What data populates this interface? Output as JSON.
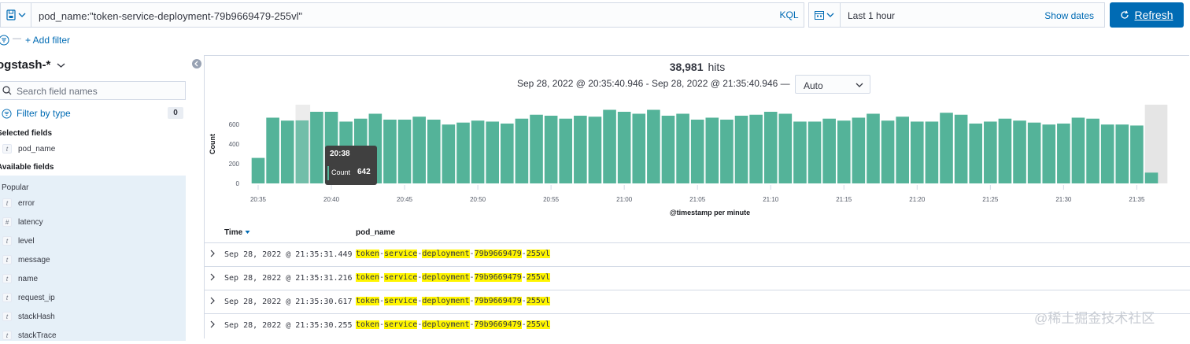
{
  "query": {
    "text": "pod_name:\"token-service-deployment-79b9669479-255vl\"",
    "language": "KQL"
  },
  "time": {
    "label": "Last 1 hour",
    "show_dates": "Show dates",
    "refresh": "Refresh"
  },
  "filters": {
    "add": "+ Add filter"
  },
  "sidebar": {
    "index_pattern": "ogstash-*",
    "search_placeholder": "Search field names",
    "filter_by_type": "Filter by type",
    "filter_count": "0",
    "selected_title": "Selected fields",
    "selected": [
      {
        "type": "t",
        "name": "pod_name"
      }
    ],
    "available_title": "Available fields",
    "popular_title": "Popular",
    "popular": [
      {
        "type": "t",
        "name": "error"
      },
      {
        "type": "#",
        "name": "latency"
      },
      {
        "type": "t",
        "name": "level"
      },
      {
        "type": "t",
        "name": "message"
      },
      {
        "type": "t",
        "name": "name"
      },
      {
        "type": "t",
        "name": "request_ip"
      },
      {
        "type": "t",
        "name": "stackHash"
      },
      {
        "type": "t",
        "name": "stackTrace"
      }
    ]
  },
  "histogram": {
    "hits_count": "38,981",
    "hits_label": "hits",
    "range": "Sep 28, 2022 @ 20:35:40.946 - Sep 28, 2022 @ 21:35:40.946 —",
    "interval": "Auto",
    "tooltip": {
      "time": "20:38",
      "label": "Count",
      "value": "642"
    }
  },
  "chart_data": {
    "type": "bar",
    "title": "",
    "xlabel": "@timestamp per minute",
    "ylabel": "Count",
    "ylim": [
      0,
      800
    ],
    "yticks": [
      0,
      200,
      400,
      600
    ],
    "xticks": [
      "20:35",
      "20:40",
      "20:45",
      "20:50",
      "20:55",
      "21:00",
      "21:05",
      "21:10",
      "21:15",
      "21:20",
      "21:25",
      "21:30",
      "21:35"
    ],
    "bar_color": "#54b399",
    "values": [
      260,
      670,
      640,
      642,
      730,
      730,
      630,
      660,
      710,
      650,
      650,
      680,
      650,
      600,
      620,
      640,
      630,
      610,
      660,
      700,
      690,
      660,
      690,
      680,
      750,
      730,
      710,
      750,
      690,
      710,
      650,
      670,
      650,
      690,
      700,
      730,
      710,
      630,
      630,
      660,
      640,
      670,
      710,
      640,
      680,
      630,
      630,
      720,
      700,
      610,
      630,
      660,
      640,
      620,
      600,
      610,
      670,
      660,
      600,
      600,
      590,
      110
    ]
  },
  "table": {
    "columns": [
      "Time",
      "pod_name"
    ],
    "rows": [
      {
        "time": "Sep 28, 2022 @ 21:35:31.449",
        "pod": [
          "token",
          "-",
          "service",
          "-",
          "deployment",
          "-",
          "79b9669479",
          "-",
          "255vl"
        ]
      },
      {
        "time": "Sep 28, 2022 @ 21:35:31.216",
        "pod": [
          "token",
          "-",
          "service",
          "-",
          "deployment",
          "-",
          "79b9669479",
          "-",
          "255vl"
        ]
      },
      {
        "time": "Sep 28, 2022 @ 21:35:30.617",
        "pod": [
          "token",
          "-",
          "service",
          "-",
          "deployment",
          "-",
          "79b9669479",
          "-",
          "255vl"
        ]
      },
      {
        "time": "Sep 28, 2022 @ 21:35:30.255",
        "pod": [
          "token",
          "-",
          "service",
          "-",
          "deployment",
          "-",
          "79b9669479",
          "-",
          "255vl"
        ]
      }
    ]
  },
  "watermark": "@稀土掘金技术社区"
}
